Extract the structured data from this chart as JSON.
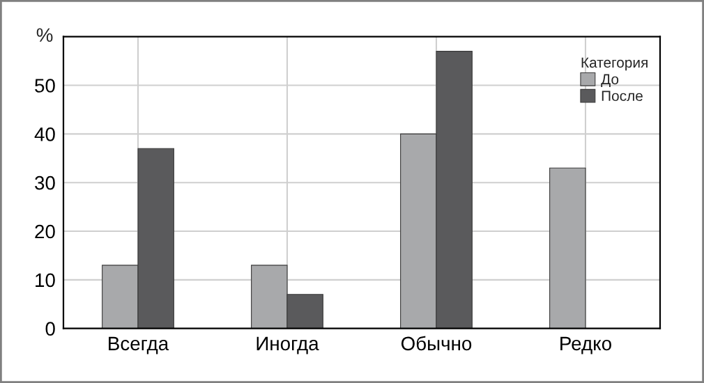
{
  "chart_data": {
    "type": "bar",
    "ylabel": "%",
    "categories": [
      "Всегда",
      "Иногда",
      "Обычно",
      "Редко"
    ],
    "series": [
      {
        "name": "До",
        "color": "#a8a9ab",
        "values": [
          13,
          13,
          40,
          33
        ]
      },
      {
        "name": "После",
        "color": "#5a5a5c",
        "values": [
          37,
          7,
          57,
          null
        ]
      }
    ],
    "ylim": [
      0,
      60
    ],
    "yticks": [
      0,
      10,
      20,
      30,
      40,
      50
    ],
    "grid": true,
    "legend": "top right",
    "legend_title": "Категория"
  }
}
